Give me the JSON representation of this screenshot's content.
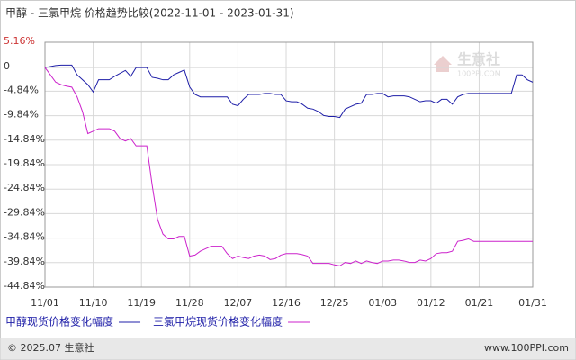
{
  "chart_data": {
    "type": "line",
    "title": "甲醇 - 三氯甲烷 价格趋势比较(2022-11-01 - 2023-01-31)",
    "categories": [
      "11/01",
      null,
      null,
      null,
      null,
      null,
      null,
      null,
      null,
      "11/10",
      null,
      null,
      null,
      null,
      null,
      null,
      null,
      null,
      "11/19",
      null,
      null,
      null,
      null,
      null,
      null,
      null,
      null,
      "11/28",
      null,
      null,
      null,
      null,
      null,
      null,
      null,
      null,
      "12/07",
      null,
      null,
      null,
      null,
      null,
      null,
      null,
      null,
      "12/16",
      null,
      null,
      null,
      null,
      null,
      null,
      null,
      null,
      "12/25",
      null,
      null,
      null,
      null,
      null,
      null,
      null,
      null,
      "01/03",
      null,
      null,
      null,
      null,
      null,
      null,
      null,
      null,
      "01/12",
      null,
      null,
      null,
      null,
      null,
      null,
      null,
      null,
      "01/21",
      null,
      null,
      null,
      null,
      null,
      null,
      null,
      null,
      null,
      "01/31"
    ],
    "series": [
      {
        "name": "甲醇现货价格变化幅度",
        "color": "#1f1fa8",
        "values": [
          0,
          0.2,
          0.4,
          0.5,
          0.5,
          0.5,
          -1.5,
          -2.5,
          -3.5,
          -5,
          -2.5,
          -2.5,
          -2.5,
          -1.8,
          -1.2,
          -0.6,
          -1.8,
          0,
          0,
          0,
          -2,
          -2.2,
          -2.5,
          -2.5,
          -1.5,
          -1,
          -0.5,
          -4,
          -5.5,
          -6,
          -6,
          -6,
          -6,
          -6,
          -6,
          -7.5,
          -7.8,
          -6.5,
          -5.5,
          -5.5,
          -5.5,
          -5.3,
          -5.3,
          -5.5,
          -5.5,
          -6.8,
          -7,
          -7,
          -7.5,
          -8.3,
          -8.5,
          -9,
          -9.8,
          -10,
          -10,
          -10.2,
          -8.5,
          -8,
          -7.5,
          -7.3,
          -5.5,
          -5.5,
          -5.3,
          -5.3,
          -6,
          -5.8,
          -5.8,
          -5.8,
          -6,
          -6.5,
          -7,
          -6.8,
          -6.8,
          -7.3,
          -6.5,
          -6.5,
          -7.5,
          -6,
          -5.5,
          -5.3,
          -5.3,
          -5.3,
          -5.3,
          -5.3,
          -5.3,
          -5.3,
          -5.3,
          -5.3,
          -1.5,
          -1.5,
          -2.5,
          -3
        ]
      },
      {
        "name": "三氯甲烷现货价格变化幅度",
        "color": "#cc22cc",
        "values": [
          0,
          -1.5,
          -3,
          -3.5,
          -3.8,
          -4,
          -6,
          -9,
          -13.5,
          -13,
          -12.5,
          -12.5,
          -12.5,
          -13,
          -14.5,
          -15,
          -14.5,
          -16,
          -16,
          -16,
          -24,
          -31,
          -34,
          -35,
          -35,
          -34.5,
          -34.5,
          -38.5,
          -38.3,
          -37.5,
          -37,
          -36.5,
          -36.5,
          -36.5,
          -38,
          -39,
          -38.5,
          -38.8,
          -39,
          -38.5,
          -38.3,
          -38.5,
          -39.2,
          -39,
          -38.3,
          -38,
          -38,
          -38,
          -38.2,
          -38.5,
          -40,
          -40,
          -40,
          -40,
          -40.3,
          -40.5,
          -39.8,
          -40,
          -39.5,
          -40,
          -39.5,
          -39.8,
          -40,
          -39.5,
          -39.5,
          -39.3,
          -39.3,
          -39.5,
          -39.8,
          -39.8,
          -39.3,
          -39.5,
          -39,
          -38,
          -37.8,
          -37.8,
          -37.5,
          -35.5,
          -35.3,
          -35,
          -35.5,
          -35.5,
          -35.5,
          -35.5,
          -35.5,
          -35.5,
          -35.5,
          -35.5,
          -35.5,
          -35.5,
          -35.5,
          -35.5
        ]
      }
    ],
    "ylim": [
      -44.84,
      5.16
    ],
    "yticks": [
      {
        "value": 5.16,
        "label": "5.16%"
      },
      0,
      {
        "value": -4.84,
        "label": "-4.84%"
      },
      {
        "value": -9.84,
        "label": "-9.84%"
      },
      {
        "value": -14.84,
        "label": "-14.84%"
      },
      {
        "value": -19.84,
        "label": "-19.84%"
      },
      {
        "value": -24.84,
        "label": "-24.84%"
      },
      {
        "value": -29.84,
        "label": "-29.84%"
      },
      {
        "value": -34.84,
        "label": "-34.84%"
      },
      {
        "value": -39.84,
        "label": "-39.84%"
      },
      {
        "value": -44.84,
        "label": "-44.84%"
      }
    ],
    "grid": true
  },
  "watermark": {
    "brand": "生意社",
    "site": "100PPI.COM"
  },
  "footer": {
    "copyright": "© 2025.07 生意社",
    "site": "www.100PPI.com"
  }
}
